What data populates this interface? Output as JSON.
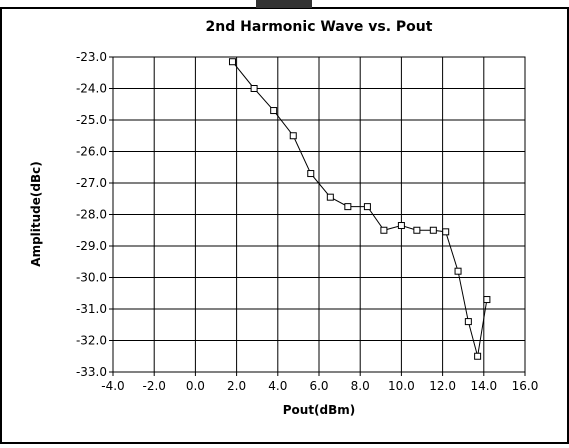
{
  "chart_data": {
    "type": "line",
    "title": "2nd Harmonic Wave vs. Pout",
    "x_label": "Pout(dBm)",
    "y_label": "Amplitude(dBc)",
    "x": [
      1.8,
      2.85,
      3.8,
      4.75,
      5.6,
      6.55,
      7.4,
      8.35,
      9.15,
      10.0,
      10.75,
      11.55,
      12.15,
      12.75,
      13.25,
      13.7,
      14.15
    ],
    "series": [
      {
        "name": "2nd Harmonic",
        "color": "#000000",
        "values": [
          -23.15,
          -24.0,
          -24.7,
          -25.5,
          -26.7,
          -27.45,
          -27.75,
          -27.75,
          -28.5,
          -28.35,
          -28.5,
          -28.5,
          -28.55,
          -29.8,
          -31.4,
          -32.5,
          -30.7
        ]
      }
    ],
    "xlim": [
      -4,
      16
    ],
    "xticks": [
      {
        "value": -4,
        "label": "-4.0"
      },
      {
        "value": -2,
        "label": "-2.0"
      },
      {
        "value": 0,
        "label": "0.0"
      },
      {
        "value": 2,
        "label": "2.0"
      },
      {
        "value": 4,
        "label": "4.0"
      },
      {
        "value": 6,
        "label": "6.0"
      },
      {
        "value": 8,
        "label": "8.0"
      },
      {
        "value": 10,
        "label": "10.0"
      },
      {
        "value": 12,
        "label": "12.0"
      },
      {
        "value": 14,
        "label": "14.0"
      },
      {
        "value": 16,
        "label": "16.0"
      }
    ],
    "ylim": [
      -33,
      -23
    ],
    "yticks": [
      {
        "value": -23,
        "label": "-23.0"
      },
      {
        "value": -24,
        "label": "-24.0"
      },
      {
        "value": -25,
        "label": "-25.0"
      },
      {
        "value": -26,
        "label": "-26.0"
      },
      {
        "value": -27,
        "label": "-27.0"
      },
      {
        "value": -28,
        "label": "-28.0"
      },
      {
        "value": -29,
        "label": "-29.0"
      },
      {
        "value": -30,
        "label": "-30.0"
      },
      {
        "value": -31,
        "label": "-31.0"
      },
      {
        "value": -32,
        "label": "-32.0"
      },
      {
        "value": -33,
        "label": "-33.0"
      }
    ],
    "grid": true
  }
}
